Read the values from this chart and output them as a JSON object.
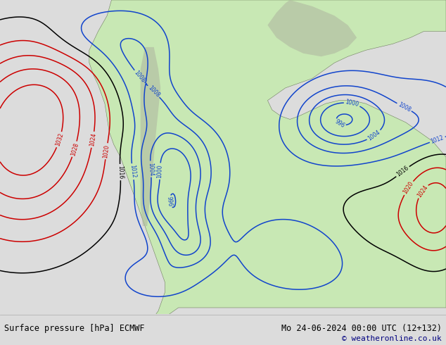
{
  "title_left": "Surface pressure [hPa] ECMWF",
  "title_right": "Mo 24-06-2024 00:00 UTC (12+132)",
  "copyright": "© weatheronline.co.uk",
  "ocean_color": "#c8d0dc",
  "land_color": "#c8e8b4",
  "mountain_color": "#b0b8a0",
  "fig_width": 6.34,
  "fig_height": 4.9,
  "dpi": 100,
  "bottom_bar_color": "#dcdcdc",
  "title_fontsize": 8.5,
  "copyright_fontsize": 8,
  "text_color": "#000080",
  "label_left_color": "#000000"
}
